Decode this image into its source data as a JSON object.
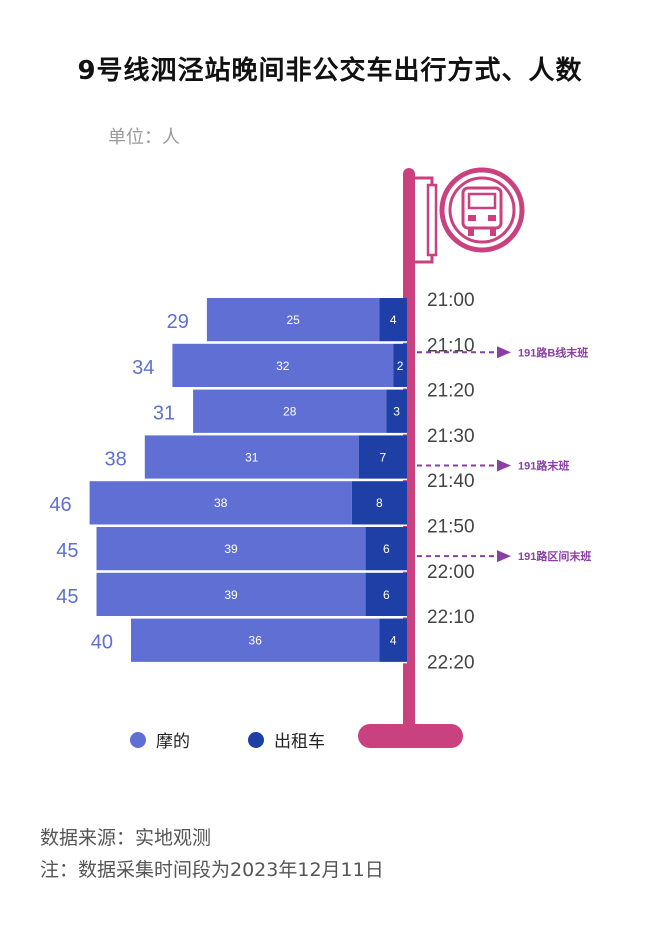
{
  "title": "9号线泗泾站晚间非公交车出行方式、人数",
  "unit_label": "单位：人",
  "chart_data": {
    "type": "bar",
    "orientation": "horizontal",
    "stacked": true,
    "categories": [
      "21:00-21:10",
      "21:10-21:20",
      "21:20-21:30",
      "21:30-21:40",
      "21:40-21:50",
      "21:50-22:00",
      "22:00-22:10",
      "22:10-22:20"
    ],
    "series": [
      {
        "name": "摩的",
        "values": [
          25,
          32,
          28,
          31,
          38,
          39,
          39,
          36
        ],
        "color": "#5f6fd4"
      },
      {
        "name": "出租车",
        "values": [
          4,
          2,
          3,
          7,
          8,
          6,
          6,
          4
        ],
        "color": "#1e3fa6"
      }
    ],
    "totals": [
      29,
      34,
      31,
      38,
      46,
      45,
      45,
      40
    ],
    "time_ticks": [
      "21:00",
      "21:10",
      "21:20",
      "21:30",
      "21:40",
      "21:50",
      "22:00",
      "22:10",
      "22:20"
    ],
    "annotations": [
      {
        "text": "191路B线末班",
        "time": "21:10"
      },
      {
        "text": "191路末班",
        "time": "21:35"
      },
      {
        "text": "191路区间末班",
        "time": "21:55"
      }
    ],
    "legend_position": "bottom-left"
  },
  "legend": [
    {
      "label": "摩的",
      "color": "#5f6fd4"
    },
    {
      "label": "出租车",
      "color": "#1e3fa6"
    }
  ],
  "footnotes": {
    "source": "数据来源：实地观测",
    "note": "注：数据采集时间段为2023年12月11日"
  },
  "colors": {
    "pole": "#c9427f",
    "annotation": "#8a3fa6",
    "total_label": "#5f6fd4"
  },
  "icons": {
    "bus_sign": "bus-front-icon"
  }
}
